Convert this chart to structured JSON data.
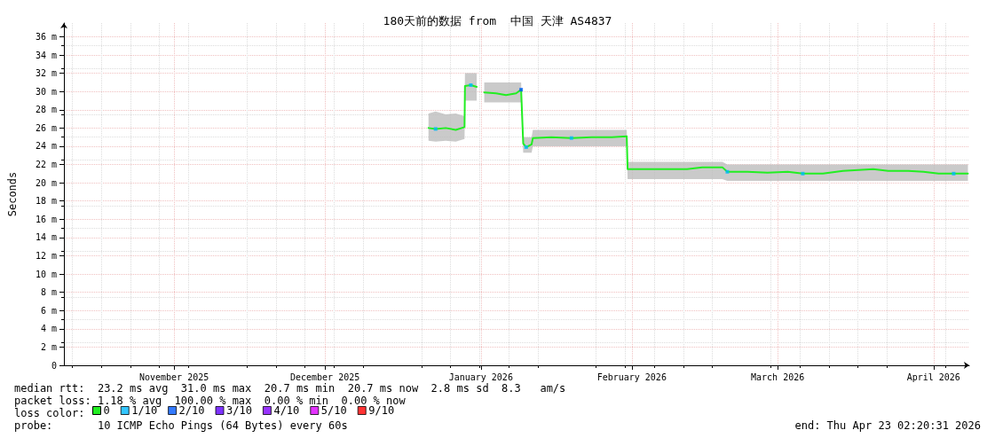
{
  "chart_data": {
    "type": "line",
    "title": "180天前的数据 from  中国 天津 AS4837",
    "ylabel": "Seconds",
    "legend_title": "loss color:",
    "legend": "bottom left",
    "grid": true,
    "xlim": [
      "2025-10-25T02:20",
      "2026-04-23T02:20"
    ],
    "xticks": [
      {
        "value": "2025-11-16",
        "label": "November 2025"
      },
      {
        "value": "2025-12-16",
        "label": "December 2025"
      },
      {
        "value": "2026-01-16",
        "label": "January 2026"
      },
      {
        "value": "2026-02-15",
        "label": "February 2026"
      },
      {
        "value": "2026-03-16",
        "label": "March 2026"
      },
      {
        "value": "2026-04-16",
        "label": "April 2026"
      }
    ],
    "ylim": [
      0,
      37.5
    ],
    "yticks": [
      0,
      {
        "value": 2,
        "label": "2 m"
      },
      {
        "value": 4,
        "label": "4 m"
      },
      {
        "value": 6,
        "label": "6 m"
      },
      {
        "value": 8,
        "label": "8 m"
      },
      {
        "value": 10,
        "label": "10 m"
      },
      {
        "value": 12,
        "label": "12 m"
      },
      {
        "value": 14,
        "label": "14 m"
      },
      {
        "value": 16,
        "label": "16 m"
      },
      {
        "value": 18,
        "label": "18 m"
      },
      {
        "value": 20,
        "label": "20 m"
      },
      {
        "value": 22,
        "label": "22 m"
      },
      {
        "value": 24,
        "label": "24 m"
      },
      {
        "value": 26,
        "label": "26 m"
      },
      {
        "value": 28,
        "label": "28 m"
      },
      {
        "value": 30,
        "label": "30 m"
      },
      {
        "value": 32,
        "label": "32 m"
      },
      {
        "value": 34,
        "label": "34 m"
      },
      {
        "value": 36,
        "label": "36 m"
      }
    ],
    "x": [
      "2026-01-05T14:00",
      "2026-01-07",
      "2026-01-09",
      "2026-01-11",
      "2026-01-12T18:00",
      "2026-01-12T20:00",
      "2026-01-14",
      "2026-01-15T04:00",
      "2026-01-16",
      "2026-01-16T16:00",
      "2026-01-19",
      "2026-01-21",
      "2026-01-23",
      "2026-01-24",
      "2026-01-24T10:00",
      "2026-01-25",
      "2026-01-26T02:00",
      "2026-01-26T08:00",
      "2026-01-30",
      "2026-02-03",
      "2026-02-07",
      "2026-02-11",
      "2026-02-14",
      "2026-02-14T04:00",
      "2026-02-20",
      "2026-02-26",
      "2026-03-01",
      "2026-03-05",
      "2026-03-06",
      "2026-03-10",
      "2026-03-14",
      "2026-03-18",
      "2026-03-21",
      "2026-03-25",
      "2026-03-29",
      "2026-04-01",
      "2026-04-04",
      "2026-04-07",
      "2026-04-11",
      "2026-04-14",
      "2026-04-17",
      "2026-04-20",
      "2026-04-22T20:00"
    ],
    "series": [
      {
        "name": "0",
        "color": "#22ee22",
        "marker": "none",
        "values": [
          26.0,
          25.9,
          26.0,
          25.8,
          26.1,
          30.6,
          30.7,
          30.5,
          null,
          29.9,
          29.8,
          29.6,
          29.8,
          30.2,
          24.3,
          23.9,
          24.2,
          24.9,
          25.0,
          24.9,
          25.0,
          25.0,
          25.1,
          21.5,
          21.5,
          21.5,
          21.7,
          21.7,
          21.2,
          21.2,
          21.1,
          21.2,
          21.0,
          21.0,
          21.3,
          21.4,
          21.5,
          21.3,
          21.3,
          21.2,
          21.0,
          21.0,
          21.0
        ],
        "lower": [
          24.6,
          24.5,
          24.6,
          24.5,
          24.8,
          29.0,
          29.0,
          29.0,
          null,
          28.8,
          28.8,
          28.8,
          28.8,
          28.8,
          23.3,
          23.3,
          23.3,
          24.0,
          24.0,
          24.0,
          24.0,
          24.0,
          24.0,
          20.4,
          20.4,
          20.4,
          20.4,
          20.4,
          20.2,
          20.2,
          20.2,
          20.2,
          20.2,
          20.2,
          20.2,
          20.2,
          20.2,
          20.2,
          20.2,
          20.2,
          20.2,
          20.2,
          20.2
        ],
        "upper": [
          27.6,
          27.8,
          27.5,
          27.6,
          27.3,
          32.0,
          32.0,
          32.0,
          null,
          31.0,
          31.0,
          31.0,
          31.0,
          31.0,
          25.0,
          25.0,
          25.0,
          25.8,
          25.8,
          25.8,
          25.8,
          25.8,
          25.8,
          22.3,
          22.3,
          22.3,
          22.3,
          22.3,
          22.0,
          22.0,
          22.0,
          22.0,
          22.0,
          22.0,
          22.0,
          22.0,
          22.0,
          22.0,
          22.0,
          22.0,
          22.0,
          22.0,
          22.0
        ]
      },
      {
        "name": "1/10",
        "type": "scatter",
        "marker": "square",
        "color": "#00b8ff",
        "x": [
          "2026-01-07",
          "2026-01-14",
          "2026-01-25",
          "2026-02-03",
          "2026-03-06",
          "2026-03-21",
          "2026-04-20"
        ],
        "values": [
          25.9,
          30.7,
          23.9,
          24.9,
          21.2,
          21.0,
          21.0
        ]
      },
      {
        "name": "2/10",
        "type": "scatter",
        "marker": "square",
        "color": "#0059ff",
        "x": [
          "2026-01-24"
        ],
        "values": [
          30.2
        ]
      },
      {
        "name": "3/10",
        "type": "scatter",
        "marker": "square",
        "color": "#5e00ff",
        "values": [
          null,
          null,
          null,
          null,
          null,
          null,
          null,
          null,
          null,
          null,
          null,
          null,
          null,
          null,
          null,
          null,
          null,
          null,
          null,
          null,
          null,
          null,
          null,
          null,
          null,
          null,
          null,
          null,
          null,
          null,
          null,
          null,
          null,
          null,
          null,
          null,
          null,
          null,
          null,
          null,
          null,
          null,
          null
        ]
      },
      {
        "name": "4/10",
        "type": "scatter",
        "marker": "square",
        "color": "#7e00ff",
        "values": [
          null,
          null,
          null,
          null,
          null,
          null,
          null,
          null,
          null,
          null,
          null,
          null,
          null,
          null,
          null,
          null,
          null,
          null,
          null,
          null,
          null,
          null,
          null,
          null,
          null,
          null,
          null,
          null,
          null,
          null,
          null,
          null,
          null,
          null,
          null,
          null,
          null,
          null,
          null,
          null,
          null,
          null,
          null
        ]
      },
      {
        "name": "5/10",
        "type": "scatter",
        "marker": "square",
        "color": "#dd00ff",
        "values": [
          null,
          null,
          null,
          null,
          null,
          null,
          null,
          null,
          null,
          null,
          null,
          null,
          null,
          null,
          null,
          null,
          null,
          null,
          null,
          null,
          null,
          null,
          null,
          null,
          null,
          null,
          null,
          null,
          null,
          null,
          null,
          null,
          null,
          null,
          null,
          null,
          null,
          null,
          null,
          null,
          null,
          null,
          null
        ]
      },
      {
        "name": "9/10",
        "type": "scatter",
        "marker": "square",
        "color": "#ff0000",
        "values": [
          null,
          null,
          null,
          null,
          null,
          null,
          null,
          null,
          null,
          null,
          null,
          null,
          null,
          null,
          null,
          null,
          null,
          null,
          null,
          null,
          null,
          null,
          null,
          null,
          null,
          null,
          null,
          null,
          null,
          null,
          null,
          null,
          null,
          null,
          null,
          null,
          null,
          null,
          null,
          null,
          null,
          null,
          null
        ]
      }
    ],
    "annotations": [
      "median rtt:  23.2 ms avg  31.0 ms max  20.7 ms min  20.7 ms now  2.8 ms sd  8.3   am/s",
      "packet loss: 1.18 % avg  100.00 % max  0.00 % min  0.00 % now",
      "probe:       10 ICMP Echo Pings (64 Bytes) every 60s",
      "end: Thu Apr 23 02:20:31 2026"
    ]
  }
}
